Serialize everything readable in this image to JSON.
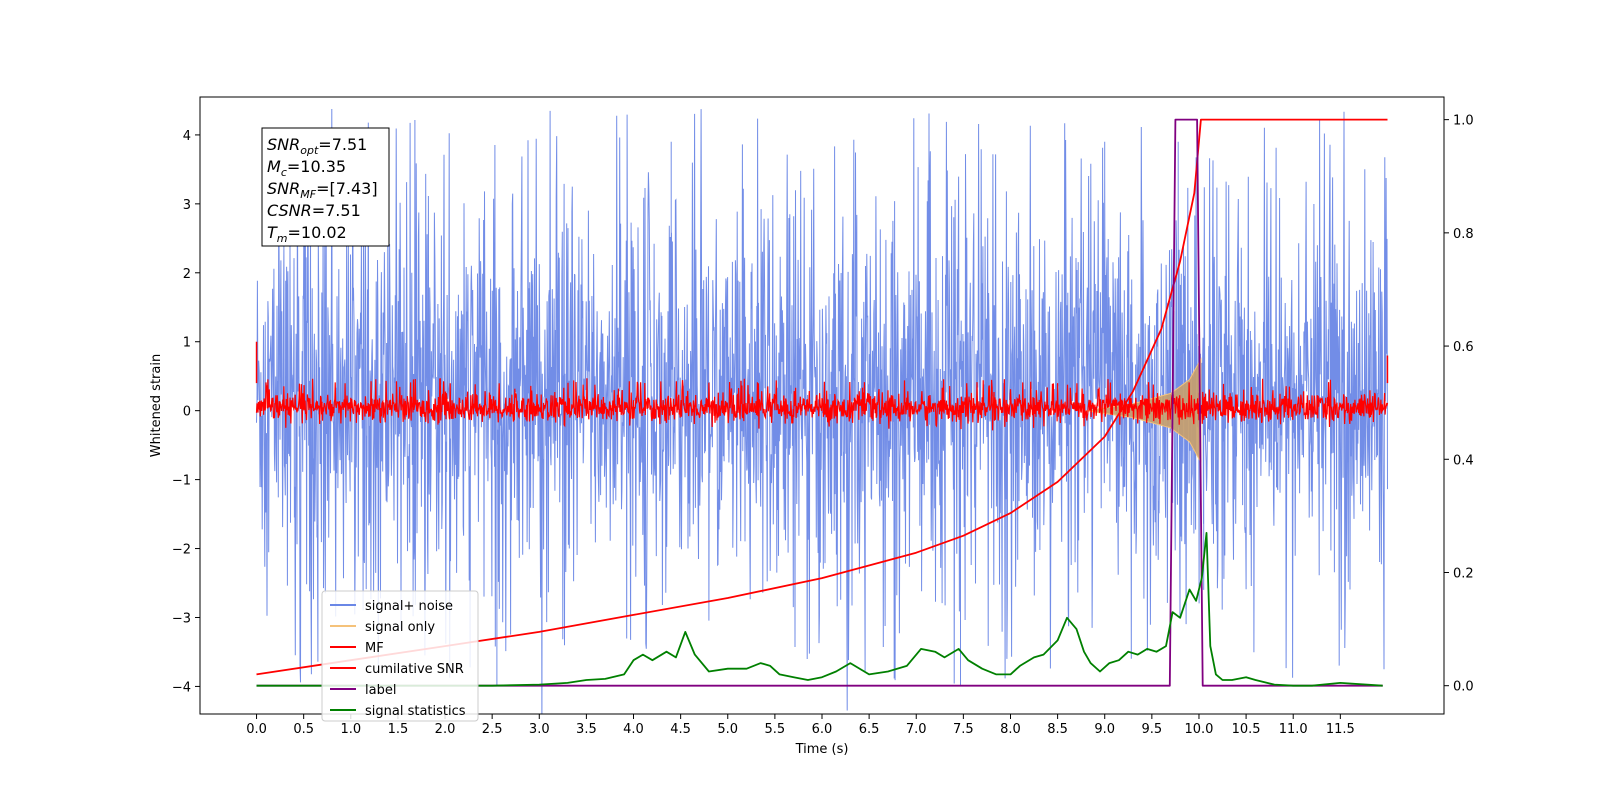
{
  "chart_data": {
    "type": "line",
    "xlabel": "Time (s)",
    "ylabel": "Whitened strain",
    "xlim": [
      -0.6,
      12.6
    ],
    "ylim": [
      -4.4,
      4.55
    ],
    "ylim_right": [
      -0.05,
      1.04
    ],
    "x_ticks": [
      "0.0",
      "0.5",
      "1.0",
      "1.5",
      "2.0",
      "2.5",
      "3.0",
      "3.5",
      "4.0",
      "4.5",
      "5.0",
      "5.5",
      "6.0",
      "6.5",
      "7.0",
      "7.5",
      "8.0",
      "8.5",
      "9.0",
      "9.5",
      "10.0",
      "10.5",
      "11.0",
      "11.5"
    ],
    "x_tick_values": [
      0,
      0.5,
      1,
      1.5,
      2,
      2.5,
      3,
      3.5,
      4,
      4.5,
      5,
      5.5,
      6,
      6.5,
      7,
      7.5,
      8,
      8.5,
      9,
      9.5,
      10,
      10.5,
      11,
      11.5
    ],
    "y_ticks_left": [
      "4",
      "3",
      "2",
      "1",
      "0",
      "−1",
      "−2",
      "−3",
      "−4"
    ],
    "y_tick_values_left": [
      4,
      3,
      2,
      1,
      0,
      -1,
      -2,
      -3,
      -4
    ],
    "y_ticks_right": [
      "1.0",
      "0.8",
      "0.6",
      "0.4",
      "0.2",
      "0.0"
    ],
    "y_tick_values_right": [
      1.0,
      0.8,
      0.6,
      0.4,
      0.2,
      0.0
    ],
    "annotation": {
      "lines": [
        {
          "sym": "SNR",
          "sub": "opt",
          "val": "=7.51"
        },
        {
          "sym": "M",
          "sub": "c",
          "val": "=10.35"
        },
        {
          "sym": "SNR",
          "sub": "MF",
          "val": "=[7.43]"
        },
        {
          "sym": "CSNR",
          "sub": "",
          "val": "=7.51"
        },
        {
          "sym": "T",
          "sub": "m",
          "val": "=10.02"
        }
      ]
    },
    "legend_position": "lower-left",
    "series": [
      {
        "name": "signal+ noise",
        "color": "#6a87e6",
        "axis": "left",
        "style": "noise band",
        "x_range": [
          0.0,
          12.0
        ],
        "typical_range": [
          -2.0,
          2.4
        ],
        "peaks": [
          [
            4.4,
            3.9
          ],
          [
            2.55,
            -4.0
          ],
          [
            7.47,
            -4.0
          ],
          [
            9.0,
            3.9
          ],
          [
            9.78,
            3.9
          ],
          [
            10.05,
            -2.6
          ]
        ]
      },
      {
        "name": "signal only",
        "color": "#f5c27a",
        "axis": "left",
        "style": "chirp",
        "chirp_points": [
          [
            8.8,
            0.0
          ],
          [
            9.3,
            0.1
          ],
          [
            9.7,
            0.25
          ],
          [
            9.9,
            0.45
          ],
          [
            10.02,
            0.75
          ]
        ]
      },
      {
        "name": "MF",
        "color": "#ff0000",
        "axis": "left",
        "style": "noise band",
        "x_range": [
          0.0,
          12.0
        ],
        "typical_range": [
          -0.18,
          0.3
        ]
      },
      {
        "name": "cumilative SNR",
        "color": "#ff0000",
        "axis": "right",
        "x": [
          0.0,
          1.0,
          2.0,
          3.0,
          4.0,
          5.0,
          6.0,
          7.0,
          7.5,
          8.0,
          8.5,
          9.0,
          9.3,
          9.6,
          9.8,
          9.95,
          10.02,
          12.0
        ],
        "y": [
          0.02,
          0.045,
          0.07,
          0.095,
          0.125,
          0.155,
          0.19,
          0.235,
          0.265,
          0.305,
          0.36,
          0.44,
          0.52,
          0.63,
          0.75,
          0.87,
          1.0,
          1.0
        ]
      },
      {
        "name": "label",
        "color": "#800080",
        "axis": "right",
        "x": [
          0.0,
          9.69,
          9.75,
          9.98,
          10.04,
          11.95
        ],
        "y": [
          0.0,
          0.0,
          1.0,
          1.0,
          0.0,
          0.0
        ]
      },
      {
        "name": "signal statistics",
        "color": "#008000",
        "axis": "right",
        "x": [
          0.0,
          0.5,
          1.0,
          1.5,
          2.0,
          2.5,
          3.0,
          3.3,
          3.5,
          3.7,
          3.9,
          4.0,
          4.1,
          4.2,
          4.35,
          4.45,
          4.55,
          4.65,
          4.8,
          5.0,
          5.2,
          5.35,
          5.45,
          5.55,
          5.7,
          5.85,
          6.0,
          6.15,
          6.3,
          6.5,
          6.7,
          6.9,
          7.05,
          7.2,
          7.3,
          7.45,
          7.55,
          7.7,
          7.85,
          8.0,
          8.1,
          8.25,
          8.35,
          8.5,
          8.6,
          8.7,
          8.78,
          8.85,
          8.95,
          9.05,
          9.15,
          9.25,
          9.35,
          9.45,
          9.55,
          9.65,
          9.72,
          9.8,
          9.9,
          9.97,
          10.03,
          10.08,
          10.12,
          10.18,
          10.25,
          10.35,
          10.5,
          10.6,
          10.8,
          11.0,
          11.2,
          11.5,
          11.95
        ],
        "y": [
          0.0,
          0.0,
          0.0,
          0.0,
          0.0,
          0.0,
          0.002,
          0.005,
          0.01,
          0.012,
          0.02,
          0.045,
          0.055,
          0.045,
          0.06,
          0.05,
          0.095,
          0.055,
          0.025,
          0.03,
          0.03,
          0.04,
          0.035,
          0.02,
          0.015,
          0.01,
          0.015,
          0.025,
          0.04,
          0.02,
          0.025,
          0.035,
          0.065,
          0.06,
          0.05,
          0.065,
          0.045,
          0.03,
          0.02,
          0.02,
          0.035,
          0.05,
          0.055,
          0.08,
          0.12,
          0.1,
          0.06,
          0.04,
          0.025,
          0.04,
          0.045,
          0.06,
          0.055,
          0.065,
          0.06,
          0.07,
          0.13,
          0.12,
          0.17,
          0.15,
          0.19,
          0.27,
          0.07,
          0.02,
          0.01,
          0.01,
          0.015,
          0.01,
          0.002,
          0.0,
          0.0,
          0.005,
          0.0
        ]
      }
    ]
  }
}
